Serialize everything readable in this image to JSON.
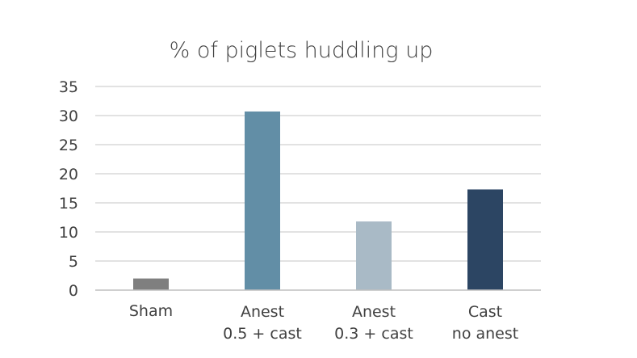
{
  "chart_data": {
    "type": "bar",
    "title": "% of piglets huddling up",
    "xlabel": "",
    "ylabel": "",
    "ylim": [
      0,
      35
    ],
    "yticks": [
      "0",
      "5",
      "10",
      "15",
      "20",
      "25",
      "30",
      "35"
    ],
    "grid": true,
    "legend": "none",
    "categories": [
      [
        "Sham"
      ],
      [
        "Anest",
        "0.5 + cast"
      ],
      [
        "Anest",
        "0.3 + cast"
      ],
      [
        "Cast",
        "no anest"
      ]
    ],
    "values": [
      2,
      30.7,
      11.8,
      17.3
    ],
    "colors": [
      "#7f7f7f",
      "#628ea6",
      "#a9bac6",
      "#2c4563"
    ]
  }
}
